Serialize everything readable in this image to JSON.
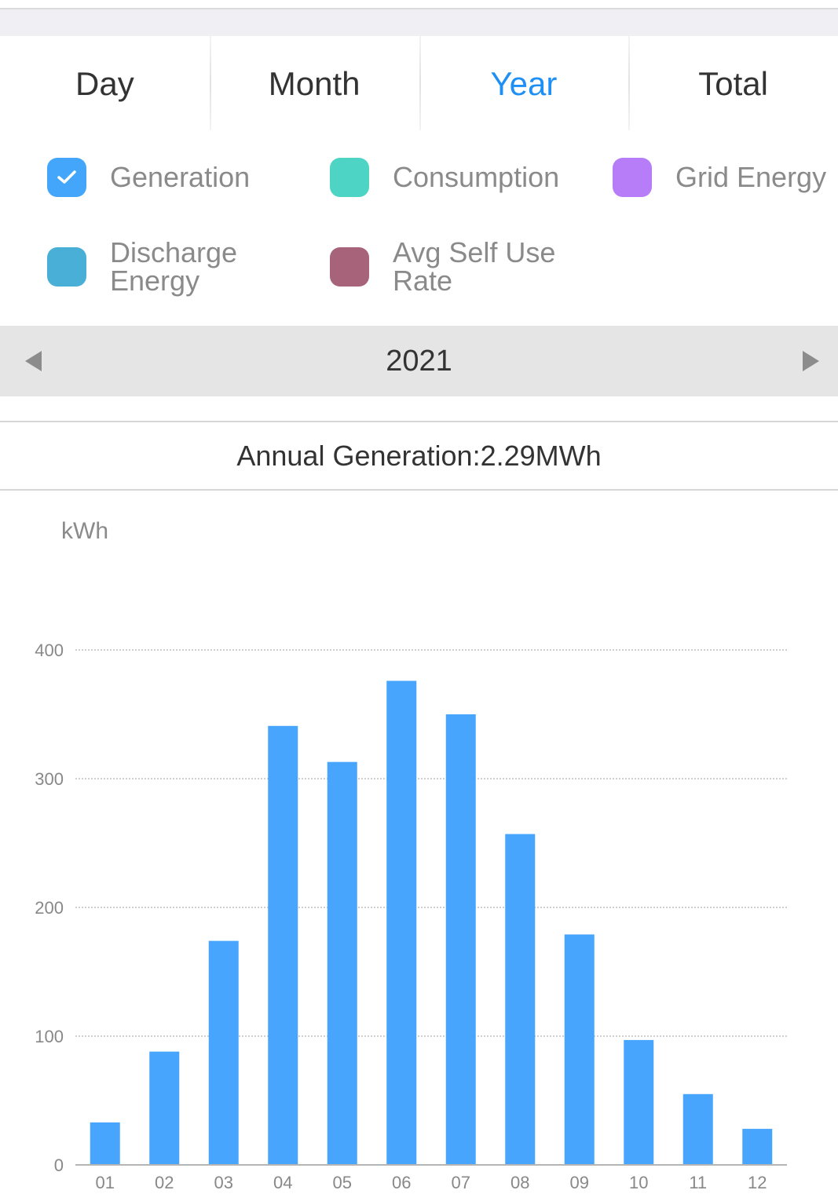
{
  "tabs": [
    {
      "label": "Day",
      "active": false
    },
    {
      "label": "Month",
      "active": false
    },
    {
      "label": "Year",
      "active": true
    },
    {
      "label": "Total",
      "active": false
    }
  ],
  "legend": [
    {
      "label": "Generation",
      "color": "#44a6fb",
      "checked": true,
      "icon": "check-icon"
    },
    {
      "label": "Consumption",
      "color": "#4dd4c4",
      "checked": false
    },
    {
      "label": "Grid Energy",
      "color": "#b77cf8",
      "checked": false
    },
    {
      "label": "Discharge\nEnergy",
      "color": "#4aafd7",
      "checked": false
    },
    {
      "label": "Avg Self Use\nRate",
      "color": "#a6637a",
      "checked": false
    }
  ],
  "period": {
    "year": "2021",
    "prev_icon": "triangle-left-icon",
    "next_icon": "triangle-right-icon"
  },
  "summary": {
    "text": "Annual Generation:2.29MWh"
  },
  "accent_color": "#1e90f5",
  "chart_data": {
    "type": "bar",
    "ylabel": "kWh",
    "ylim": [
      0,
      400
    ],
    "yticks": [
      0,
      100,
      200,
      300,
      400
    ],
    "grid": true,
    "categories": [
      "01",
      "02",
      "03",
      "04",
      "05",
      "06",
      "07",
      "08",
      "09",
      "10",
      "11",
      "12"
    ],
    "series": [
      {
        "values": [
          33,
          88,
          174,
          341,
          313,
          376,
          350,
          257,
          179,
          97,
          55,
          28
        ],
        "color": "#47a5fd"
      }
    ]
  }
}
